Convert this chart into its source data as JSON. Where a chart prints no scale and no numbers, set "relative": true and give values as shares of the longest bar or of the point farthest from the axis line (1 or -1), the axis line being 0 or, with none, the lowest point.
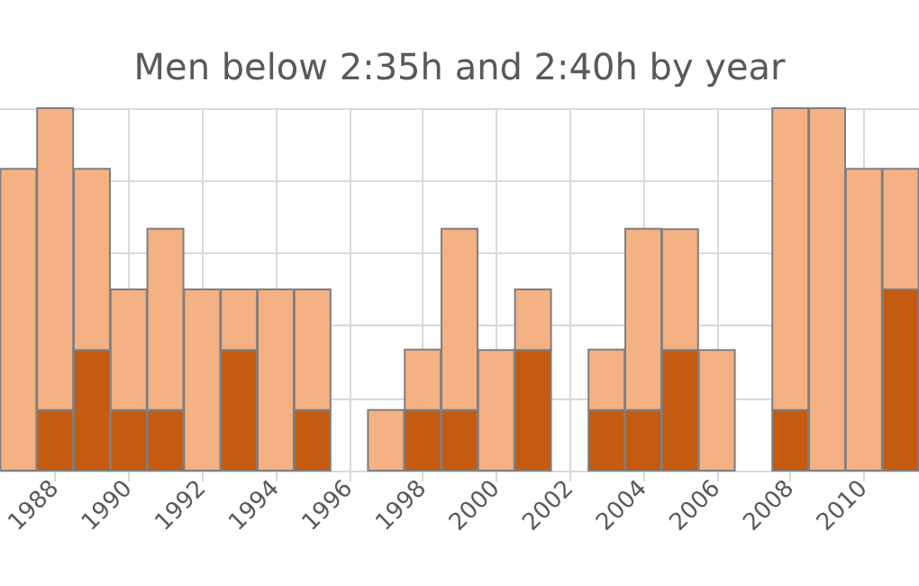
{
  "chart_data": {
    "type": "bar",
    "title": "Men below 2:35h and 2:40h by year",
    "relative": true,
    "stacked": true,
    "grid": true,
    "x": [
      1987,
      1988,
      1989,
      1990,
      1991,
      1992,
      1993,
      1994,
      1995,
      1996,
      1997,
      1998,
      1999,
      2000,
      2001,
      2002,
      2003,
      2004,
      2005,
      2006,
      2007,
      2008,
      2009,
      2010,
      2011
    ],
    "xlim": [
      1986.5,
      2011.5
    ],
    "xticks": [
      1988,
      1990,
      1992,
      1994,
      1996,
      1998,
      2000,
      2002,
      2004,
      2006,
      2008,
      2010
    ],
    "series": [
      {
        "color": "#c55a11",
        "values": [
          0,
          0.167,
          0.333,
          0.167,
          0.167,
          0,
          0.333,
          0,
          0.167,
          0,
          0,
          0.167,
          0.167,
          0,
          0.333,
          0,
          0.167,
          0.167,
          0.333,
          0,
          0,
          0.167,
          0,
          0,
          0.5
        ]
      },
      {
        "color": "#f4b183",
        "values": [
          0.833,
          0.833,
          0.5,
          0.333,
          0.5,
          0.5,
          0.167,
          0.5,
          0.333,
          0,
          0.167,
          0.167,
          0.5,
          0.333,
          0.167,
          0,
          0.167,
          0.5,
          0.333,
          0.333,
          0,
          0.833,
          1,
          0.833,
          0.333
        ]
      }
    ]
  }
}
